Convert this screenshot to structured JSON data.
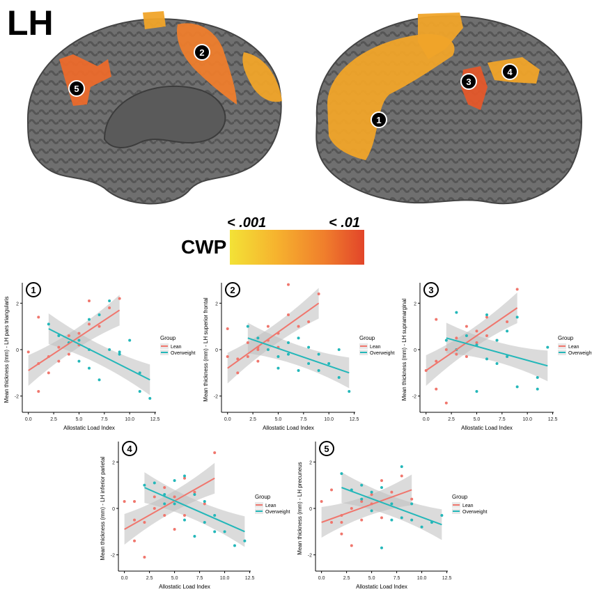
{
  "hemisphere_label": "LH",
  "legend": {
    "title": "CWP",
    "low_label": "< .001",
    "high_label": "< .01",
    "colors": [
      "#f3e236",
      "#f6b22e",
      "#f07f2c",
      "#e2452a"
    ]
  },
  "brain_markers": [
    {
      "id": "1"
    },
    {
      "id": "2"
    },
    {
      "id": "3"
    },
    {
      "id": "4"
    },
    {
      "id": "5"
    }
  ],
  "group_colors": {
    "Lean": "#f0766d",
    "Overweight": "#23b7b9"
  },
  "chart_data": [
    {
      "type": "scatter",
      "panel": "1",
      "xlabel": "Allostatic Load Index",
      "ylabel": "Mean thickness (mm) - LH pars triangularis",
      "xlim": [
        -0.6,
        12.6
      ],
      "ylim": [
        -2.7,
        2.7
      ],
      "xticks": [
        0.0,
        2.5,
        5.0,
        7.5,
        10.0,
        12.5
      ],
      "xtick_labels": [
        "0.0",
        "2.5",
        "5.0",
        "7.5",
        "10.0",
        "12.5"
      ],
      "yticks": [
        -2,
        0,
        2
      ],
      "ytick_labels": [
        "-2",
        "0",
        "2"
      ],
      "legend_title": "Group",
      "series": [
        {
          "name": "Lean",
          "points": [
            [
              0,
              -0.1
            ],
            [
              1,
              -1.8
            ],
            [
              1,
              -0.6
            ],
            [
              2,
              -0.3
            ],
            [
              2,
              -1.0
            ],
            [
              3,
              0.1
            ],
            [
              3,
              -0.5
            ],
            [
              4,
              0.6
            ],
            [
              5,
              0.2
            ],
            [
              5,
              0.7
            ],
            [
              6,
              1.1
            ],
            [
              6,
              2.1
            ],
            [
              7,
              1.0
            ],
            [
              8,
              1.8
            ],
            [
              9,
              2.2
            ],
            [
              4,
              -0.2
            ],
            [
              1,
              1.4
            ]
          ],
          "fit": {
            "x": [
              0,
              9
            ],
            "y": [
              -0.9,
              1.7
            ]
          }
        },
        {
          "name": "Overweight",
          "points": [
            [
              2,
              1.1
            ],
            [
              3,
              0.6
            ],
            [
              4,
              0.3
            ],
            [
              5,
              0.4
            ],
            [
              5,
              -0.5
            ],
            [
              6,
              1.3
            ],
            [
              6,
              0.0
            ],
            [
              7,
              -1.3
            ],
            [
              7,
              1.5
            ],
            [
              8,
              0.0
            ],
            [
              9,
              -0.1
            ],
            [
              10,
              0.4
            ],
            [
              11,
              -1.8
            ],
            [
              11,
              -1.0
            ],
            [
              12,
              -2.1
            ],
            [
              8,
              2.1
            ],
            [
              6,
              -0.8
            ],
            [
              9,
              -0.2
            ]
          ],
          "fit": {
            "x": [
              2,
              12
            ],
            "y": [
              0.9,
              -1.3
            ]
          }
        }
      ]
    },
    {
      "type": "scatter",
      "panel": "2",
      "xlabel": "Allostatic Load Index",
      "ylabel": "Mean thickness (mm) - LH superior frontal",
      "xlim": [
        -0.6,
        12.6
      ],
      "ylim": [
        -2.7,
        2.7
      ],
      "xticks": [
        0.0,
        2.5,
        5.0,
        7.5,
        10.0,
        12.5
      ],
      "xtick_labels": [
        "0.0",
        "2.5",
        "5.0",
        "7.5",
        "10.0",
        "12.5"
      ],
      "yticks": [
        -2,
        0,
        2
      ],
      "ytick_labels": [
        "-2",
        "0",
        "2"
      ],
      "legend_title": "Group",
      "series": [
        {
          "name": "Lean",
          "points": [
            [
              0,
              -0.3
            ],
            [
              0,
              0.9
            ],
            [
              1,
              -1.0
            ],
            [
              1,
              -0.4
            ],
            [
              2,
              -0.3
            ],
            [
              2,
              0.3
            ],
            [
              3,
              0.1
            ],
            [
              3,
              -0.5
            ],
            [
              4,
              0.4
            ],
            [
              4,
              1.0
            ],
            [
              5,
              0.1
            ],
            [
              6,
              2.8
            ],
            [
              6,
              1.5
            ],
            [
              7,
              1.0
            ],
            [
              8,
              1.2
            ],
            [
              9,
              2.4
            ],
            [
              5,
              0.7
            ],
            [
              3,
              0.0
            ]
          ],
          "fit": {
            "x": [
              0,
              9
            ],
            "y": [
              -0.8,
              2.0
            ]
          }
        },
        {
          "name": "Overweight",
          "points": [
            [
              2,
              1.0
            ],
            [
              3,
              0.5
            ],
            [
              4,
              0.0
            ],
            [
              5,
              -0.3
            ],
            [
              6,
              0.3
            ],
            [
              6,
              -0.2
            ],
            [
              7,
              -0.9
            ],
            [
              7,
              0.5
            ],
            [
              8,
              -0.6
            ],
            [
              9,
              -0.2
            ],
            [
              10,
              -0.6
            ],
            [
              11,
              0.0
            ],
            [
              12,
              -1.8
            ],
            [
              11,
              -1.2
            ],
            [
              8,
              0.1
            ],
            [
              5,
              -0.8
            ],
            [
              9,
              -0.9
            ]
          ],
          "fit": {
            "x": [
              2,
              12
            ],
            "y": [
              0.5,
              -1.0
            ]
          }
        }
      ]
    },
    {
      "type": "scatter",
      "panel": "3",
      "xlabel": "Allostatic Load Index",
      "ylabel": "Mean thickness (mm) - LH supramarginal",
      "xlim": [
        -0.6,
        12.6
      ],
      "ylim": [
        -2.7,
        2.7
      ],
      "xticks": [
        0.0,
        2.5,
        5.0,
        7.5,
        10.0,
        12.5
      ],
      "xtick_labels": [
        "0.0",
        "2.5",
        "5.0",
        "7.5",
        "10.0",
        "12.5"
      ],
      "yticks": [
        -2,
        0,
        2
      ],
      "ytick_labels": [
        "-2",
        "0",
        "2"
      ],
      "legend_title": "Group",
      "series": [
        {
          "name": "Lean",
          "points": [
            [
              0,
              -0.9
            ],
            [
              1,
              -1.7
            ],
            [
              1,
              1.3
            ],
            [
              1,
              -0.5
            ],
            [
              2,
              -2.3
            ],
            [
              2,
              0.0
            ],
            [
              3,
              0.5
            ],
            [
              3,
              -0.2
            ],
            [
              4,
              1.0
            ],
            [
              5,
              0.3
            ],
            [
              5,
              0.8
            ],
            [
              6,
              1.4
            ],
            [
              7,
              0.4
            ],
            [
              8,
              1.2
            ],
            [
              9,
              2.6
            ],
            [
              4,
              -0.3
            ],
            [
              6,
              0.6
            ]
          ],
          "fit": {
            "x": [
              0,
              9
            ],
            "y": [
              -0.9,
              1.8
            ]
          }
        },
        {
          "name": "Overweight",
          "points": [
            [
              2,
              0.4
            ],
            [
              3,
              1.6
            ],
            [
              3,
              0.0
            ],
            [
              4,
              0.6
            ],
            [
              5,
              -1.8
            ],
            [
              5,
              0.2
            ],
            [
              6,
              1.5
            ],
            [
              6,
              -0.4
            ],
            [
              7,
              0.4
            ],
            [
              7,
              -0.6
            ],
            [
              8,
              0.8
            ],
            [
              9,
              -1.6
            ],
            [
              9,
              1.4
            ],
            [
              11,
              -1.7
            ],
            [
              11,
              -1.2
            ],
            [
              12,
              0.1
            ],
            [
              8,
              -0.3
            ]
          ],
          "fit": {
            "x": [
              2,
              12
            ],
            "y": [
              0.5,
              -0.7
            ]
          }
        }
      ]
    },
    {
      "type": "scatter",
      "panel": "4",
      "xlabel": "Allostatic Load Index",
      "ylabel": "Mean thickness (mm) - LH inferior parietal",
      "xlim": [
        -0.6,
        12.6
      ],
      "ylim": [
        -2.7,
        2.7
      ],
      "xticks": [
        0.0,
        2.5,
        5.0,
        7.5,
        10.0,
        12.5
      ],
      "xtick_labels": [
        "0.0",
        "2.5",
        "5.0",
        "7.5",
        "10.0",
        "12.5"
      ],
      "yticks": [
        -2,
        0,
        2
      ],
      "ytick_labels": [
        "-2",
        "0",
        "2"
      ],
      "legend_title": "Group",
      "series": [
        {
          "name": "Lean",
          "points": [
            [
              0,
              0.3
            ],
            [
              1,
              -1.4
            ],
            [
              1,
              -0.5
            ],
            [
              2,
              -2.1
            ],
            [
              2,
              -0.6
            ],
            [
              3,
              0.0
            ],
            [
              3,
              0.5
            ],
            [
              4,
              -0.3
            ],
            [
              4,
              0.9
            ],
            [
              5,
              0.5
            ],
            [
              6,
              1.3
            ],
            [
              6,
              -0.3
            ],
            [
              7,
              0.7
            ],
            [
              8,
              0.2
            ],
            [
              9,
              2.4
            ],
            [
              5,
              -0.9
            ],
            [
              1,
              0.3
            ]
          ],
          "fit": {
            "x": [
              0,
              9
            ],
            "y": [
              -0.9,
              1.3
            ]
          }
        },
        {
          "name": "Overweight",
          "points": [
            [
              2,
              1.0
            ],
            [
              3,
              1.1
            ],
            [
              4,
              0.6
            ],
            [
              5,
              0.2
            ],
            [
              5,
              1.2
            ],
            [
              6,
              -0.5
            ],
            [
              6,
              1.4
            ],
            [
              7,
              -1.2
            ],
            [
              7,
              0.6
            ],
            [
              8,
              0.3
            ],
            [
              9,
              -1.0
            ],
            [
              9,
              -0.3
            ],
            [
              10,
              -1.0
            ],
            [
              11,
              -1.6
            ],
            [
              12,
              -1.4
            ],
            [
              4,
              0.2
            ],
            [
              8,
              -0.6
            ]
          ],
          "fit": {
            "x": [
              2,
              12
            ],
            "y": [
              0.9,
              -1.0
            ]
          }
        }
      ]
    },
    {
      "type": "scatter",
      "panel": "5",
      "xlabel": "Allostatic Load Index",
      "ylabel": "Mean thickness (mm) - LH precuneus",
      "xlim": [
        -0.6,
        12.6
      ],
      "ylim": [
        -2.7,
        2.7
      ],
      "xticks": [
        0.0,
        2.5,
        5.0,
        7.5,
        10.0,
        12.5
      ],
      "xtick_labels": [
        "0.0",
        "2.5",
        "5.0",
        "7.5",
        "10.0",
        "12.5"
      ],
      "yticks": [
        -2,
        0,
        2
      ],
      "ytick_labels": [
        "-2",
        "0",
        "2"
      ],
      "legend_title": "Group",
      "series": [
        {
          "name": "Lean",
          "points": [
            [
              0,
              0.3
            ],
            [
              1,
              -0.6
            ],
            [
              1,
              0.8
            ],
            [
              2,
              -1.1
            ],
            [
              2,
              -0.3
            ],
            [
              3,
              -1.6
            ],
            [
              3,
              0.0
            ],
            [
              4,
              0.3
            ],
            [
              4,
              -0.5
            ],
            [
              5,
              0.6
            ],
            [
              6,
              -0.4
            ],
            [
              6,
              1.2
            ],
            [
              7,
              0.7
            ],
            [
              8,
              1.4
            ],
            [
              9,
              0.4
            ],
            [
              5,
              0.2
            ],
            [
              2,
              -0.6
            ]
          ],
          "fit": {
            "x": [
              0,
              9
            ],
            "y": [
              -0.6,
              0.8
            ]
          }
        },
        {
          "name": "Overweight",
          "points": [
            [
              2,
              1.5
            ],
            [
              3,
              0.8
            ],
            [
              4,
              0.4
            ],
            [
              5,
              -0.1
            ],
            [
              5,
              0.7
            ],
            [
              6,
              -1.7
            ],
            [
              6,
              0.9
            ],
            [
              7,
              0.2
            ],
            [
              8,
              1.8
            ],
            [
              8,
              -0.4
            ],
            [
              9,
              -0.5
            ],
            [
              10,
              -0.8
            ],
            [
              11,
              -0.6
            ],
            [
              12,
              -0.3
            ],
            [
              7,
              -0.5
            ],
            [
              4,
              1.0
            ],
            [
              9,
              0.2
            ]
          ],
          "fit": {
            "x": [
              2,
              12
            ],
            "y": [
              0.9,
              -0.7
            ]
          }
        }
      ]
    }
  ]
}
